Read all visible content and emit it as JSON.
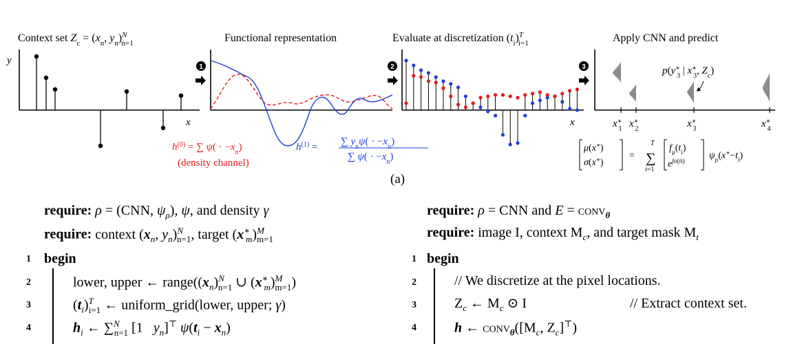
{
  "figure": {
    "caption": "(a)",
    "panels": [
      {
        "title": "Context set Z_c = (x_n, y_n)_{n=1}^N",
        "y_label": "y",
        "x_label": "x"
      },
      {
        "title": "Functional representation",
        "x_label": "",
        "step": "1"
      },
      {
        "title": "Evaluate at discretization (t_i)_{i=1}^T",
        "x_label": "x",
        "step": "2"
      },
      {
        "title": "Apply CNN and predict",
        "x_label": "",
        "step": "3"
      }
    ],
    "density_formula": "h^(0) = Σ ψ( · −x_n)",
    "density_note": "(density channel)",
    "h1_lhs": "h^(1) =",
    "h1_num": "Σ y_n ψ( · −x_n)",
    "h1_den": "Σ ψ( · −x_n)",
    "predictive_label": "p(y*_3 | x*_3, Z_c)",
    "target_labels": [
      "x*_1",
      "x*_2",
      "x*_3",
      "x*_4"
    ],
    "output_formula": "[μ(x*) σ(x*)] = Σ_{i=1}^{T} [f_μ(t_i) e^{f_σ(t_i)}] ψ_ρ(x* − t_i)"
  },
  "algorithm_left": {
    "require1_kw": "require:",
    "require1_text": "ρ = (CNN, ψ_ρ), ψ, and density γ",
    "require2_kw": "require:",
    "require2_text": "context (x_n, y_n)_{n=1}^N, target (x*_m)_{m=1}^M",
    "begin_kw": "begin",
    "lines": [
      {
        "num": "1",
        "text": "begin"
      },
      {
        "num": "2",
        "text": "lower, upper ← range((x_n)_{n=1}^N ∪ (x*_m)_{m=1}^M)"
      },
      {
        "num": "3",
        "text": "(t_i)_{i=1}^T ← uniform_grid(lower, upper; γ)"
      },
      {
        "num": "4",
        "text": "h_i ← Σ_{n=1}^N [1 y_n]^⊤ ψ(t_i − x_n)"
      }
    ]
  },
  "algorithm_right": {
    "require1_kw": "require:",
    "require1_text": "ρ = CNN and E = CONV_θ",
    "require2_kw": "require:",
    "require2_text": "image I, context M_c, and target mask M_t",
    "begin_kw": "begin",
    "lines": [
      {
        "num": "1",
        "text": "begin"
      },
      {
        "num": "2",
        "text": "// We discretize at the pixel locations."
      },
      {
        "num": "3",
        "text": "Z_c ← M_c ⊙ I",
        "comment": "// Extract context set."
      },
      {
        "num": "4",
        "text": "h ← CONV_θ([M_c, Z_c]^⊤)"
      }
    ]
  }
}
